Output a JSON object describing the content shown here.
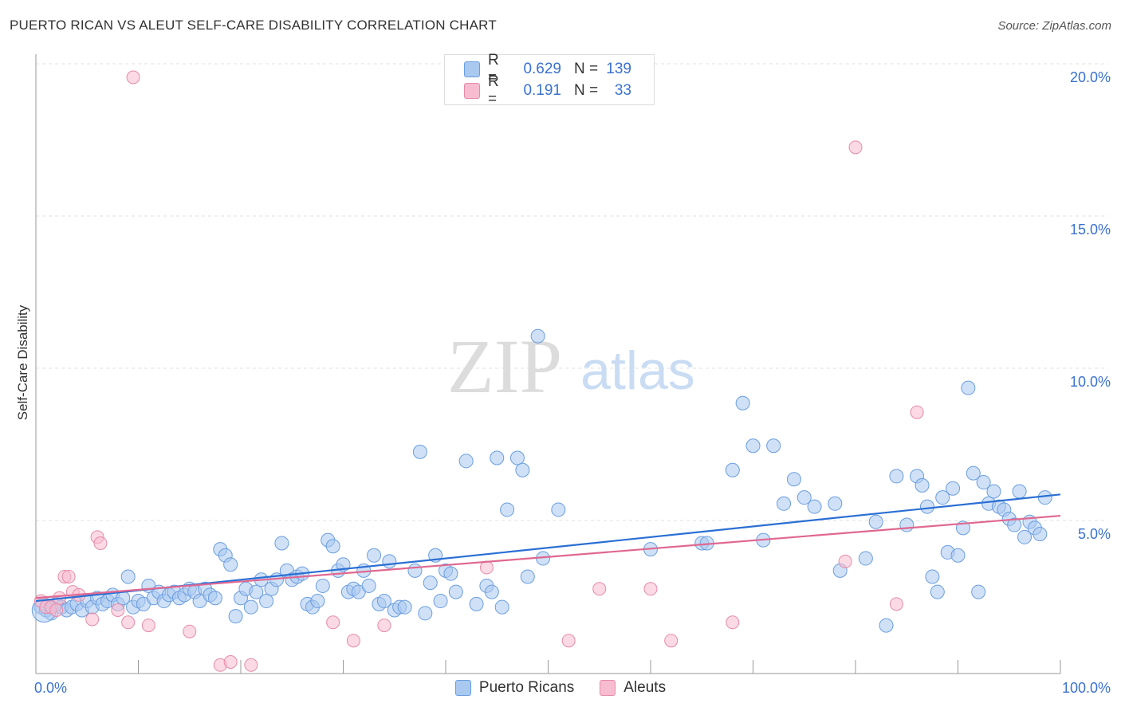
{
  "title": "PUERTO RICAN VS ALEUT SELF-CARE DISABILITY CORRELATION CHART",
  "source": "Source: ZipAtlas.com",
  "watermark": {
    "zip": "ZIP",
    "atlas": "atlas"
  },
  "legend": {
    "r_label": "R =",
    "n_label": "N =",
    "rows": [
      {
        "r": "0.629",
        "n": "139",
        "fill": "#a9c9f1",
        "stroke": "#6a9ee0"
      },
      {
        "r": "0.191",
        "n": "33",
        "fill": "#f7bcd0",
        "stroke": "#e88aa8"
      }
    ]
  },
  "colors": {
    "blue_fill": "#a9c9f1",
    "blue_stroke": "#6a9ee0",
    "blue_line": "#2a6fd4",
    "pink_fill": "#f7bcd0",
    "pink_stroke": "#e88aa8",
    "pink_line": "#e06890",
    "tick_label": "#3a72d0",
    "grid": "#e0e0e0"
  },
  "chart_data": {
    "type": "scatter",
    "title": "PUERTO RICAN VS ALEUT SELF-CARE DISABILITY CORRELATION CHART",
    "xlabel": "",
    "ylabel": "Self-Care Disability",
    "xlim": [
      0,
      100
    ],
    "ylim": [
      0,
      20.5
    ],
    "x_tick_labels": [
      "0.0%",
      "100.0%"
    ],
    "y_ticks": [
      5,
      10,
      15,
      20
    ],
    "y_tick_labels": [
      "5.0%",
      "10.0%",
      "15.0%",
      "20.0%"
    ],
    "grid": "horizontal dashed",
    "legend_position": "top-center",
    "series": [
      {
        "name": "Puerto Ricans",
        "r": 0.629,
        "n": 139,
        "trend": [
          [
            0,
            2.8
          ],
          [
            100,
            6.3
          ]
        ],
        "points": [
          [
            0.5,
            2.6
          ],
          [
            1,
            2.5
          ],
          [
            1.5,
            2.4
          ],
          [
            2,
            2.7
          ],
          [
            2.5,
            2.6
          ],
          [
            3,
            2.5
          ],
          [
            3.5,
            2.6
          ],
          [
            4,
            2.7
          ],
          [
            4.5,
            2.5
          ],
          [
            5,
            2.8
          ],
          [
            5.5,
            2.6
          ],
          [
            6,
            2.9
          ],
          [
            6.5,
            2.7
          ],
          [
            7,
            2.8
          ],
          [
            7.5,
            3.0
          ],
          [
            8,
            2.7
          ],
          [
            8.5,
            2.9
          ],
          [
            9,
            3.6
          ],
          [
            9.5,
            2.6
          ],
          [
            10,
            2.8
          ],
          [
            10.5,
            2.7
          ],
          [
            11,
            3.3
          ],
          [
            11.5,
            2.9
          ],
          [
            12,
            3.1
          ],
          [
            12.5,
            2.8
          ],
          [
            13,
            3.0
          ],
          [
            13.5,
            3.1
          ],
          [
            14,
            2.9
          ],
          [
            14.5,
            3.0
          ],
          [
            15,
            3.2
          ],
          [
            15.5,
            3.1
          ],
          [
            16,
            2.8
          ],
          [
            16.5,
            3.2
          ],
          [
            17,
            3.0
          ],
          [
            17.5,
            2.9
          ],
          [
            18,
            4.5
          ],
          [
            18.5,
            4.3
          ],
          [
            19,
            4.0
          ],
          [
            19.5,
            2.3
          ],
          [
            20,
            2.9
          ],
          [
            20.5,
            3.2
          ],
          [
            21,
            2.6
          ],
          [
            21.5,
            3.1
          ],
          [
            22,
            3.5
          ],
          [
            22.5,
            2.8
          ],
          [
            23,
            3.2
          ],
          [
            23.5,
            3.5
          ],
          [
            24,
            4.7
          ],
          [
            24.5,
            3.8
          ],
          [
            25,
            3.5
          ],
          [
            25.5,
            3.6
          ],
          [
            26,
            3.7
          ],
          [
            26.5,
            2.7
          ],
          [
            27,
            2.6
          ],
          [
            27.5,
            2.8
          ],
          [
            28,
            3.3
          ],
          [
            28.5,
            4.8
          ],
          [
            29,
            4.6
          ],
          [
            29.5,
            3.8
          ],
          [
            30,
            4.0
          ],
          [
            30.5,
            3.1
          ],
          [
            31,
            3.2
          ],
          [
            31.5,
            3.1
          ],
          [
            32,
            3.8
          ],
          [
            32.5,
            3.3
          ],
          [
            33,
            4.3
          ],
          [
            33.5,
            2.7
          ],
          [
            34,
            2.8
          ],
          [
            34.5,
            4.1
          ],
          [
            35,
            2.5
          ],
          [
            35.5,
            2.6
          ],
          [
            36,
            2.6
          ],
          [
            37,
            3.8
          ],
          [
            37.5,
            7.7
          ],
          [
            38,
            2.4
          ],
          [
            38.5,
            3.4
          ],
          [
            39,
            4.3
          ],
          [
            39.5,
            2.8
          ],
          [
            40,
            3.8
          ],
          [
            40.5,
            3.7
          ],
          [
            41,
            3.1
          ],
          [
            42,
            7.4
          ],
          [
            43,
            2.7
          ],
          [
            44,
            3.3
          ],
          [
            44.5,
            3.1
          ],
          [
            45,
            7.5
          ],
          [
            45.5,
            2.6
          ],
          [
            46,
            5.8
          ],
          [
            47,
            7.5
          ],
          [
            47.5,
            7.1
          ],
          [
            48,
            3.6
          ],
          [
            49,
            11.5
          ],
          [
            49.5,
            4.2
          ],
          [
            51,
            5.8
          ],
          [
            60,
            4.5
          ],
          [
            65,
            4.7
          ],
          [
            65.5,
            4.7
          ],
          [
            68,
            7.1
          ],
          [
            69,
            9.3
          ],
          [
            70,
            7.9
          ],
          [
            71,
            4.8
          ],
          [
            72,
            7.9
          ],
          [
            73,
            6.0
          ],
          [
            74,
            6.8
          ],
          [
            75,
            6.2
          ],
          [
            76,
            5.9
          ],
          [
            78,
            6.0
          ],
          [
            78.5,
            3.8
          ],
          [
            81,
            4.2
          ],
          [
            82,
            5.4
          ],
          [
            83,
            2.0
          ],
          [
            84,
            6.9
          ],
          [
            85,
            5.3
          ],
          [
            86,
            6.9
          ],
          [
            86.5,
            6.6
          ],
          [
            87,
            5.9
          ],
          [
            87.5,
            3.6
          ],
          [
            88,
            3.1
          ],
          [
            88.5,
            6.2
          ],
          [
            89,
            4.4
          ],
          [
            89.5,
            6.5
          ],
          [
            90,
            4.3
          ],
          [
            90.5,
            5.2
          ],
          [
            91,
            9.8
          ],
          [
            91.5,
            7.0
          ],
          [
            92,
            3.1
          ],
          [
            92.5,
            6.7
          ],
          [
            93,
            6.0
          ],
          [
            93.5,
            6.4
          ],
          [
            94,
            5.9
          ],
          [
            94.5,
            5.8
          ],
          [
            95,
            5.5
          ],
          [
            95.5,
            5.3
          ],
          [
            96,
            6.4
          ],
          [
            96.5,
            4.9
          ],
          [
            97,
            5.4
          ],
          [
            97.5,
            5.2
          ],
          [
            98,
            5.0
          ],
          [
            98.5,
            6.2
          ]
        ]
      },
      {
        "name": "Aleuts",
        "r": 0.191,
        "n": 33,
        "trend": [
          [
            0,
            2.9
          ],
          [
            100,
            5.6
          ]
        ],
        "points": [
          [
            0.5,
            2.8
          ],
          [
            1,
            2.6
          ],
          [
            1.5,
            2.6
          ],
          [
            2,
            2.5
          ],
          [
            2.3,
            2.9
          ],
          [
            2.8,
            3.6
          ],
          [
            3.2,
            3.6
          ],
          [
            3.6,
            3.1
          ],
          [
            4.2,
            3.0
          ],
          [
            5.5,
            2.2
          ],
          [
            6.0,
            4.9
          ],
          [
            6.3,
            4.7
          ],
          [
            8,
            2.5
          ],
          [
            9,
            2.1
          ],
          [
            9.5,
            20.0
          ],
          [
            11,
            2.0
          ],
          [
            15,
            1.8
          ],
          [
            18,
            0.7
          ],
          [
            19,
            0.8
          ],
          [
            21,
            0.7
          ],
          [
            29,
            2.1
          ],
          [
            31,
            1.5
          ],
          [
            34,
            2.0
          ],
          [
            44,
            3.9
          ],
          [
            52,
            1.5
          ],
          [
            55,
            3.2
          ],
          [
            60,
            3.2
          ],
          [
            62,
            1.5
          ],
          [
            68,
            2.1
          ],
          [
            79,
            4.1
          ],
          [
            80,
            17.7
          ],
          [
            84,
            2.7
          ],
          [
            86,
            9.0
          ]
        ]
      }
    ]
  }
}
